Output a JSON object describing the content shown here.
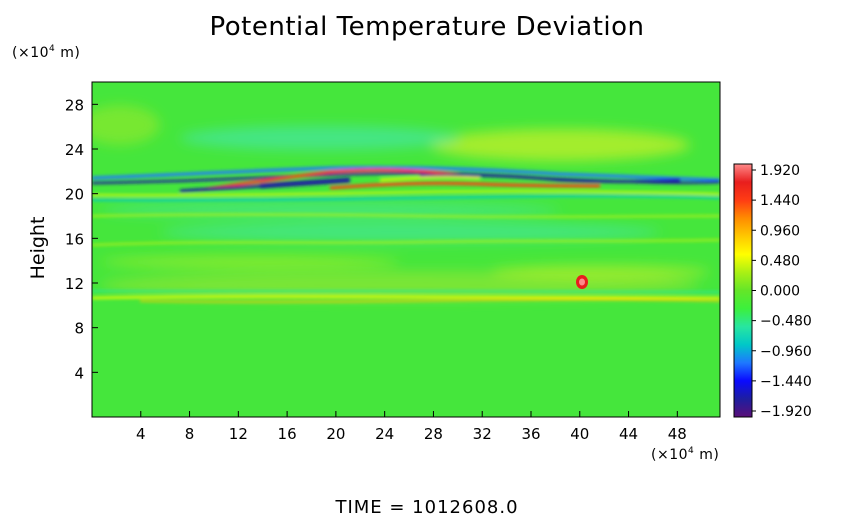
{
  "chart_data": {
    "type": "heatmap",
    "title": "Potential Temperature Deviation",
    "ylabel": "Height",
    "xunit": "(×10",
    "xunit_exp": "4",
    "xunit_tail": " m)",
    "yunit": "(×10",
    "yunit_exp": "4",
    "yunit_tail": " m)",
    "xlim": [
      0,
      51.5
    ],
    "ylim": [
      0,
      30
    ],
    "xticks": [
      4,
      8,
      12,
      16,
      20,
      24,
      28,
      32,
      36,
      40,
      44,
      48
    ],
    "yticks": [
      4,
      8,
      12,
      16,
      20,
      24,
      28
    ],
    "colorbar": {
      "ticks": [
        "1.920",
        "1.440",
        "0.960",
        "0.480",
        "0.000",
        "−0.480",
        "−0.960",
        "−1.440",
        "−1.920"
      ],
      "range": [
        -1.92,
        1.92
      ],
      "colors": [
        "#5a0f78",
        "#1e1ea0",
        "#0a0aff",
        "#1e78ff",
        "#00c8c8",
        "#28e6a0",
        "#3cf03c",
        "#64e628",
        "#aaf014",
        "#ffff00",
        "#ffc800",
        "#ff8c00",
        "#ff3c14",
        "#e81e1e",
        "#ff8a8a"
      ]
    },
    "footer": "TIME  =  1012608.0"
  }
}
